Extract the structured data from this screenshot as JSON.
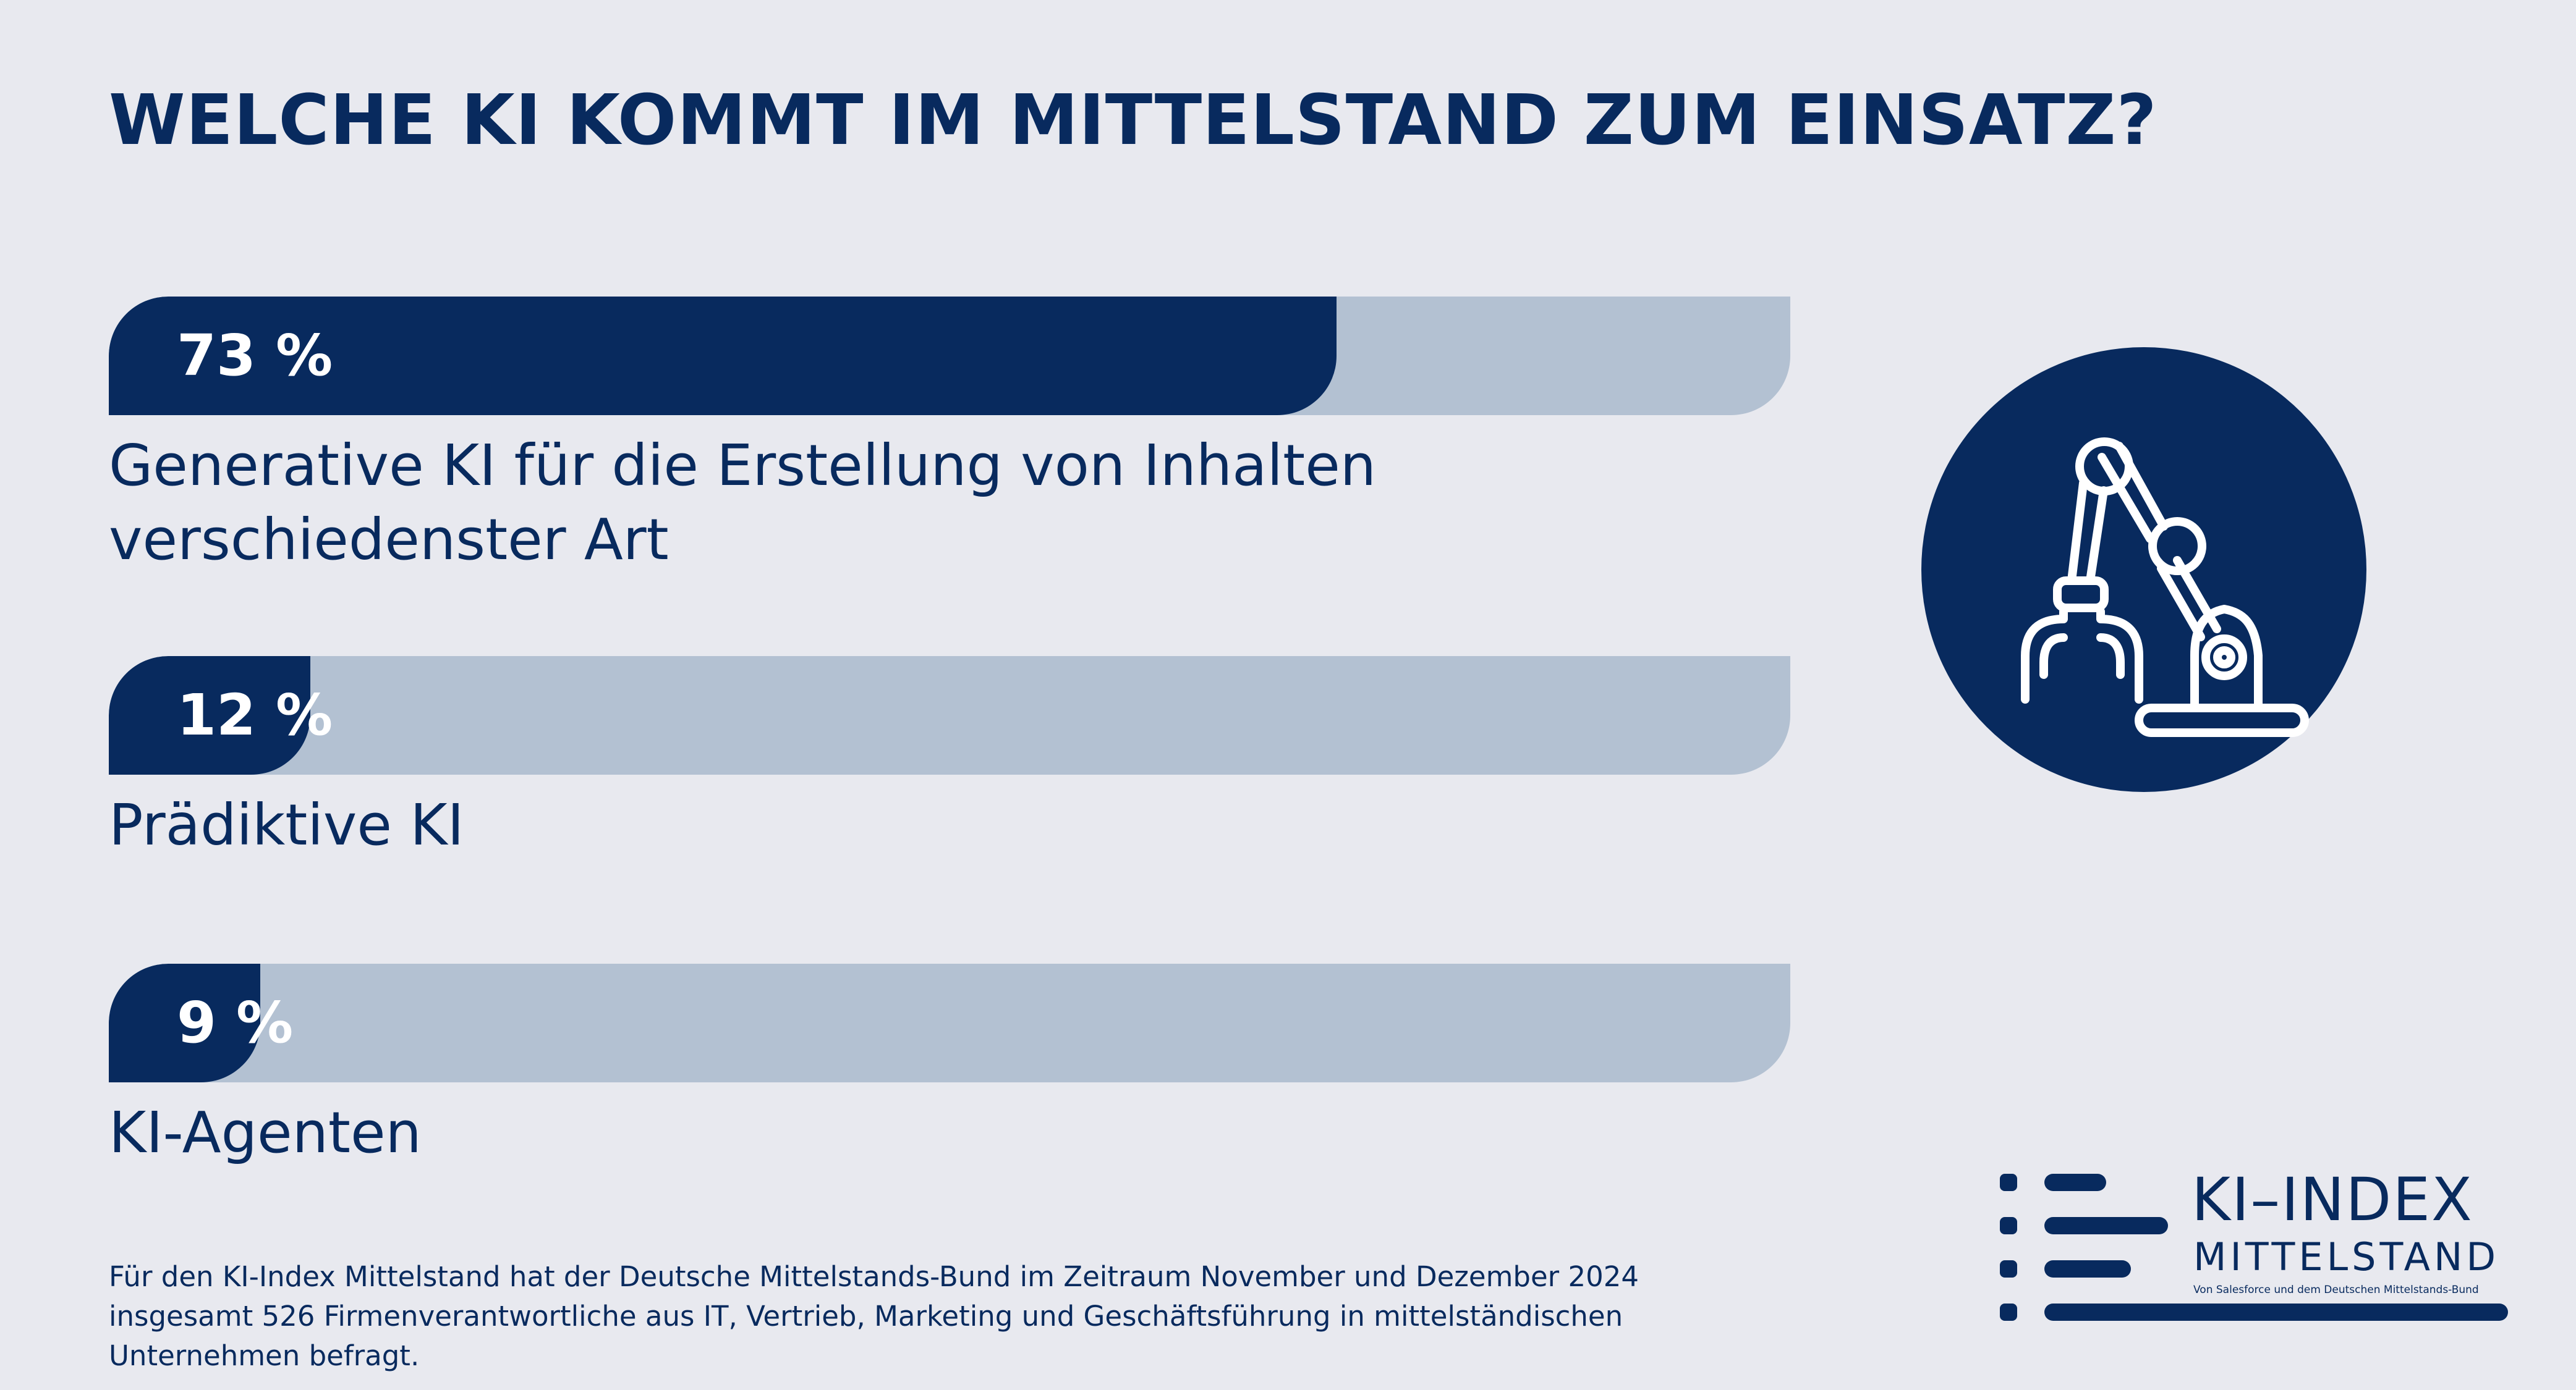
{
  "title": "WELCHE KI KOMMT IM MITTELSTAND ZUM EINSATZ?",
  "chart_data": {
    "type": "bar",
    "title": "WELCHE KI KOMMT IM MITTELSTAND ZUM EINSATZ?",
    "categories": [
      "Generative KI für die Erstellung von Inhalten verschiedenster Art",
      "Prädiktive KI",
      "KI-Agenten"
    ],
    "values": [
      73,
      12,
      9
    ],
    "value_labels": [
      "73 %",
      "12 %",
      "9 %"
    ],
    "xlim": [
      0,
      100
    ],
    "grid": false,
    "legend": "none"
  },
  "footnote": "Für den KI-Index Mittelstand hat der Deutsche Mittelstands-Bund im Zeitraum November und Dezember 2024 insgesamt 526 Firmenverantwortliche aus IT, Vertrieb, Marketing und Geschäftsführung in mittelständischen Unternehmen befragt.",
  "logo": {
    "title": "KI–INDEX",
    "subtitle": "MITTELSTAND",
    "tagline": "Von Salesforce und dem Deutschen Mittelstands-Bund"
  },
  "icons": {
    "illustration": "robot-arm-icon",
    "logo_mark": "index-lines-icon"
  },
  "colors": {
    "primary": "#082a5e",
    "track": "#b3c1d2",
    "background": "#e8e9ef",
    "text_on_bar": "#ffffff"
  }
}
